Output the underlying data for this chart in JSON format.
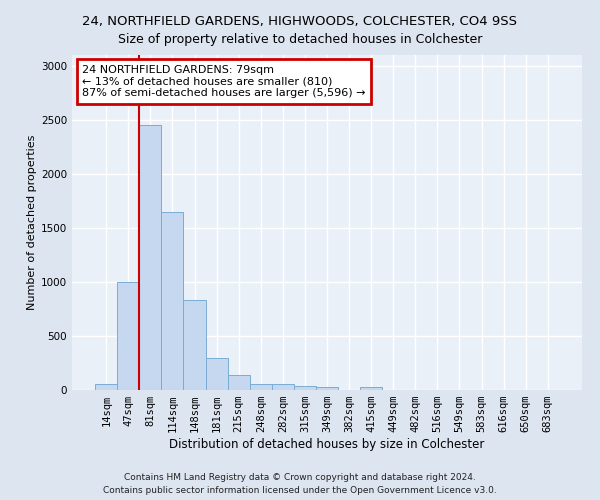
{
  "title1": "24, NORTHFIELD GARDENS, HIGHWOODS, COLCHESTER, CO4 9SS",
  "title2": "Size of property relative to detached houses in Colchester",
  "xlabel": "Distribution of detached houses by size in Colchester",
  "ylabel": "Number of detached properties",
  "categories": [
    "14sqm",
    "47sqm",
    "81sqm",
    "114sqm",
    "148sqm",
    "181sqm",
    "215sqm",
    "248sqm",
    "282sqm",
    "315sqm",
    "349sqm",
    "382sqm",
    "415sqm",
    "449sqm",
    "482sqm",
    "516sqm",
    "549sqm",
    "583sqm",
    "616sqm",
    "650sqm",
    "683sqm"
  ],
  "values": [
    60,
    1000,
    2450,
    1650,
    830,
    300,
    140,
    55,
    55,
    40,
    25,
    0,
    30,
    0,
    0,
    0,
    0,
    0,
    0,
    0,
    0
  ],
  "bar_color": "#c5d8ef",
  "bar_edge_color": "#7aadd4",
  "annotation_text": "24 NORTHFIELD GARDENS: 79sqm\n← 13% of detached houses are smaller (810)\n87% of semi-detached houses are larger (5,596) →",
  "annotation_box_color": "white",
  "annotation_box_edge_color": "#cc0000",
  "line_color": "#cc0000",
  "ylim": [
    0,
    3100
  ],
  "yticks": [
    0,
    500,
    1000,
    1500,
    2000,
    2500,
    3000
  ],
  "footer1": "Contains HM Land Registry data © Crown copyright and database right 2024.",
  "footer2": "Contains public sector information licensed under the Open Government Licence v3.0.",
  "bg_color": "#dde5f0",
  "plot_bg_color": "#eaf0f8",
  "grid_color": "#ffffff",
  "title1_fontsize": 9.5,
  "title2_fontsize": 9,
  "ylabel_fontsize": 8,
  "xlabel_fontsize": 8.5,
  "tick_fontsize": 7.5,
  "annot_fontsize": 8,
  "footer_fontsize": 6.5
}
